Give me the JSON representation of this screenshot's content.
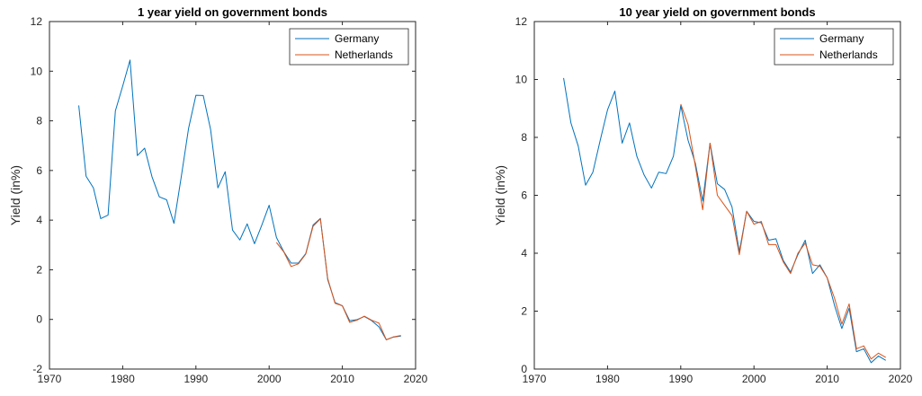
{
  "chart_data": [
    {
      "type": "line",
      "title": "1 year yield on government bonds",
      "xlabel": "",
      "ylabel": "Yield (in%)",
      "xlim": [
        1970,
        2020
      ],
      "ylim": [
        -2,
        12
      ],
      "xticks": [
        1970,
        1980,
        1990,
        2000,
        2010,
        2020
      ],
      "yticks": [
        -2,
        0,
        2,
        4,
        6,
        8,
        10,
        12
      ],
      "legend": "top-right",
      "grid": false,
      "series": [
        {
          "name": "Germany",
          "color": "#0072BD",
          "x": [
            1974,
            1975,
            1976,
            1977,
            1978,
            1979,
            1980,
            1981,
            1982,
            1983,
            1984,
            1985,
            1986,
            1987,
            1988,
            1989,
            1990,
            1991,
            1992,
            1993,
            1994,
            1995,
            1996,
            1997,
            1998,
            1999,
            2000,
            2001,
            2002,
            2003,
            2004,
            2005,
            2006,
            2007,
            2008,
            2009,
            2010,
            2011,
            2012,
            2013,
            2014,
            2015,
            2016,
            2017,
            2018
          ],
          "y": [
            8.62,
            5.77,
            5.3,
            4.06,
            4.2,
            8.4,
            9.4,
            10.45,
            6.6,
            6.9,
            5.75,
            4.94,
            4.82,
            3.87,
            5.75,
            7.7,
            9.03,
            9.02,
            7.66,
            5.3,
            5.95,
            3.6,
            3.2,
            3.85,
            3.05,
            3.8,
            4.6,
            3.3,
            2.73,
            2.27,
            2.27,
            2.65,
            3.8,
            4.07,
            1.6,
            0.68,
            0.55,
            -0.05,
            -0.01,
            0.12,
            -0.05,
            -0.3,
            -0.82,
            -0.71,
            -0.67
          ]
        },
        {
          "name": "Netherlands",
          "color": "#D95319",
          "x": [
            2001,
            2002,
            2003,
            2004,
            2005,
            2006,
            2007,
            2008,
            2009,
            2010,
            2011,
            2012,
            2013,
            2014,
            2015,
            2016,
            2017,
            2018
          ],
          "y": [
            3.1,
            2.72,
            2.13,
            2.24,
            2.63,
            3.75,
            4.05,
            1.65,
            0.65,
            0.55,
            -0.12,
            -0.03,
            0.13,
            -0.03,
            -0.15,
            -0.82,
            -0.7,
            -0.65
          ]
        }
      ]
    },
    {
      "type": "line",
      "title": "10 year yield on government bonds",
      "xlabel": "",
      "ylabel": "Yield (in%)",
      "xlim": [
        1970,
        2020
      ],
      "ylim": [
        0,
        12
      ],
      "xticks": [
        1970,
        1980,
        1990,
        2000,
        2010,
        2020
      ],
      "yticks": [
        0,
        2,
        4,
        6,
        8,
        10,
        12
      ],
      "legend": "top-right",
      "grid": false,
      "series": [
        {
          "name": "Germany",
          "color": "#0072BD",
          "x": [
            1974,
            1975,
            1976,
            1977,
            1978,
            1979,
            1980,
            1981,
            1982,
            1983,
            1984,
            1985,
            1986,
            1987,
            1988,
            1989,
            1990,
            1991,
            1992,
            1993,
            1994,
            1995,
            1996,
            1997,
            1998,
            1999,
            2000,
            2001,
            2002,
            2003,
            2004,
            2005,
            2006,
            2007,
            2008,
            2009,
            2010,
            2011,
            2012,
            2013,
            2014,
            2015,
            2016,
            2017,
            2018
          ],
          "y": [
            10.05,
            8.5,
            7.7,
            6.35,
            6.8,
            7.9,
            8.95,
            9.6,
            7.8,
            8.5,
            7.35,
            6.7,
            6.25,
            6.8,
            6.75,
            7.35,
            9.1,
            7.9,
            7.1,
            5.8,
            7.8,
            6.4,
            6.2,
            5.6,
            4.05,
            5.45,
            5.1,
            5.05,
            4.45,
            4.5,
            3.75,
            3.35,
            3.95,
            4.45,
            3.3,
            3.6,
            3.15,
            2.2,
            1.4,
            2.1,
            0.6,
            0.7,
            0.22,
            0.45,
            0.3
          ]
        },
        {
          "name": "Netherlands",
          "color": "#D95319",
          "x": [
            1990,
            1991,
            1992,
            1993,
            1994,
            1995,
            1996,
            1997,
            1998,
            1999,
            2000,
            2001,
            2002,
            2003,
            2004,
            2005,
            2006,
            2007,
            2008,
            2009,
            2010,
            2011,
            2012,
            2013,
            2014,
            2015,
            2016,
            2017,
            2018
          ],
          "y": [
            9.15,
            8.45,
            7.0,
            5.5,
            7.8,
            6.0,
            5.65,
            5.3,
            3.95,
            5.45,
            5.0,
            5.1,
            4.3,
            4.3,
            3.7,
            3.3,
            4.0,
            4.35,
            3.6,
            3.55,
            3.15,
            2.45,
            1.55,
            2.25,
            0.7,
            0.8,
            0.35,
            0.55,
            0.4
          ]
        }
      ]
    }
  ]
}
